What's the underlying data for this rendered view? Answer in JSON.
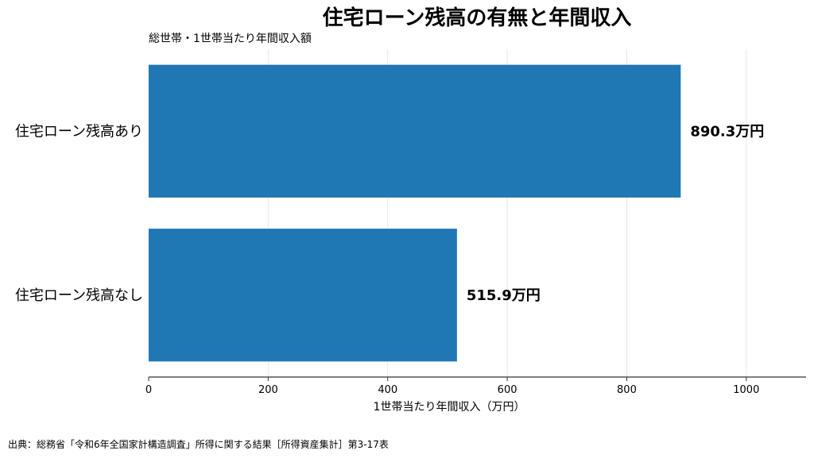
{
  "chart_data": {
    "type": "bar",
    "orientation": "horizontal",
    "title": "住宅ローン残高の有無と年間収入",
    "subtitle": "総世帯・1世帯当たり年間収入額",
    "categories": [
      "住宅ローン残高あり",
      "住宅ローン残高なし"
    ],
    "values": [
      890.3,
      515.9
    ],
    "data_labels": [
      "890.3万円",
      "515.9万円"
    ],
    "xlabel": "1世帯当たり年間収入（万円）",
    "ylabel": "",
    "xlim": [
      0,
      1100
    ],
    "xticks": [
      0,
      200,
      400,
      600,
      800,
      1000
    ],
    "grid": "vertical",
    "bar_color": "#1f77b4"
  },
  "source": "出典：総務省「令和6年全国家計構造調査」所得に関する結果［所得資産集計］第3-17表"
}
